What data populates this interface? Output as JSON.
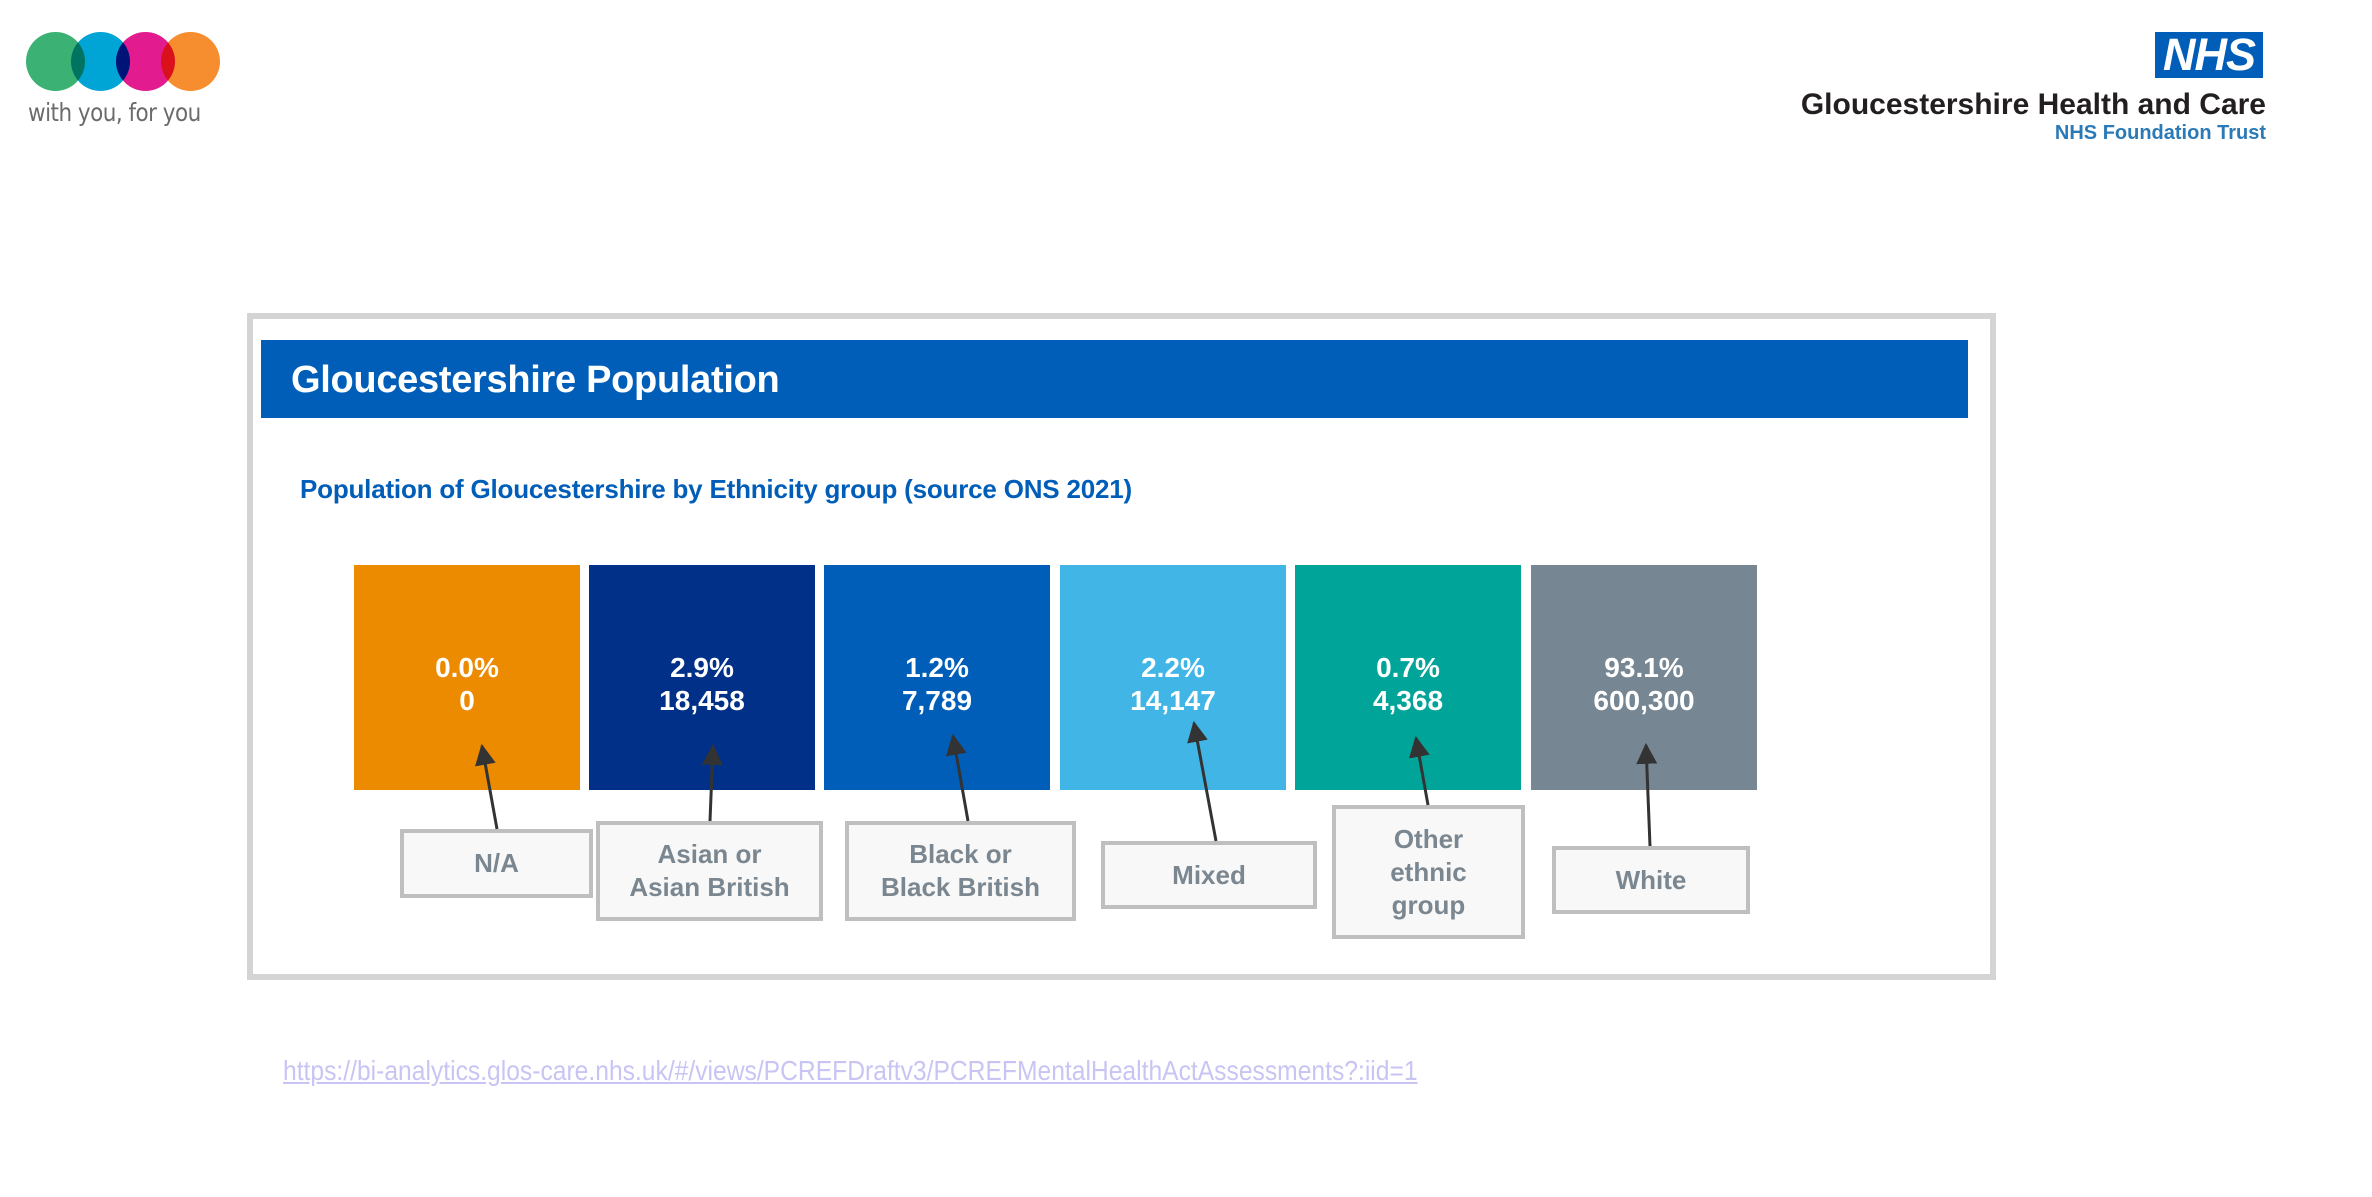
{
  "brand": {
    "tagline": "with you, for you",
    "circle_colors": [
      "#3bb273",
      "#00a5d6",
      "#e21c8e",
      "#f68d2e"
    ]
  },
  "nhs": {
    "logo_text": "NHS",
    "org_name": "Gloucestershire Health and Care",
    "org_sub": "NHS Foundation Trust",
    "logo_color": "#005eb8"
  },
  "card": {
    "title": "Gloucestershire Population",
    "subtitle": "Population of Gloucestershire by Ethnicity group (source ONS 2021)",
    "header_color": "#005eb8"
  },
  "chart_data": {
    "type": "table",
    "title": "Population of Gloucestershire by Ethnicity group (source ONS 2021)",
    "categories": [
      "N/A",
      "Asian or Asian British",
      "Black or Black British",
      "Mixed",
      "Other ethnic group",
      "White"
    ],
    "series": [
      {
        "name": "Percent",
        "values": [
          0.0,
          2.9,
          1.2,
          2.2,
          0.7,
          93.1
        ]
      },
      {
        "name": "Count",
        "values": [
          0,
          18458,
          7789,
          14147,
          4368,
          600300
        ]
      }
    ],
    "tiles": [
      {
        "pct": "0.0%",
        "count": "0",
        "label_lines": [
          "N/A"
        ],
        "color": "#ec8a00"
      },
      {
        "pct": "2.9%",
        "count": "18,458",
        "label_lines": [
          "Asian or",
          "Asian British"
        ],
        "color": "#003087"
      },
      {
        "pct": "1.2%",
        "count": "7,789",
        "label_lines": [
          "Black or",
          "Black British"
        ],
        "color": "#005eb8"
      },
      {
        "pct": "2.2%",
        "count": "14,147",
        "label_lines": [
          "Mixed"
        ],
        "color": "#41b6e6"
      },
      {
        "pct": "0.7%",
        "count": "4,368",
        "label_lines": [
          "Other",
          "ethnic",
          "group"
        ],
        "color": "#00a499"
      },
      {
        "pct": "93.1%",
        "count": "600,300",
        "label_lines": [
          "White"
        ],
        "color": "#768692"
      }
    ]
  },
  "source_link": {
    "text": "https://bi-analytics.glos-care.nhs.uk/#/views/PCREFDraftv3/PCREFMentalHealthActAssessments?:iid=1"
  }
}
